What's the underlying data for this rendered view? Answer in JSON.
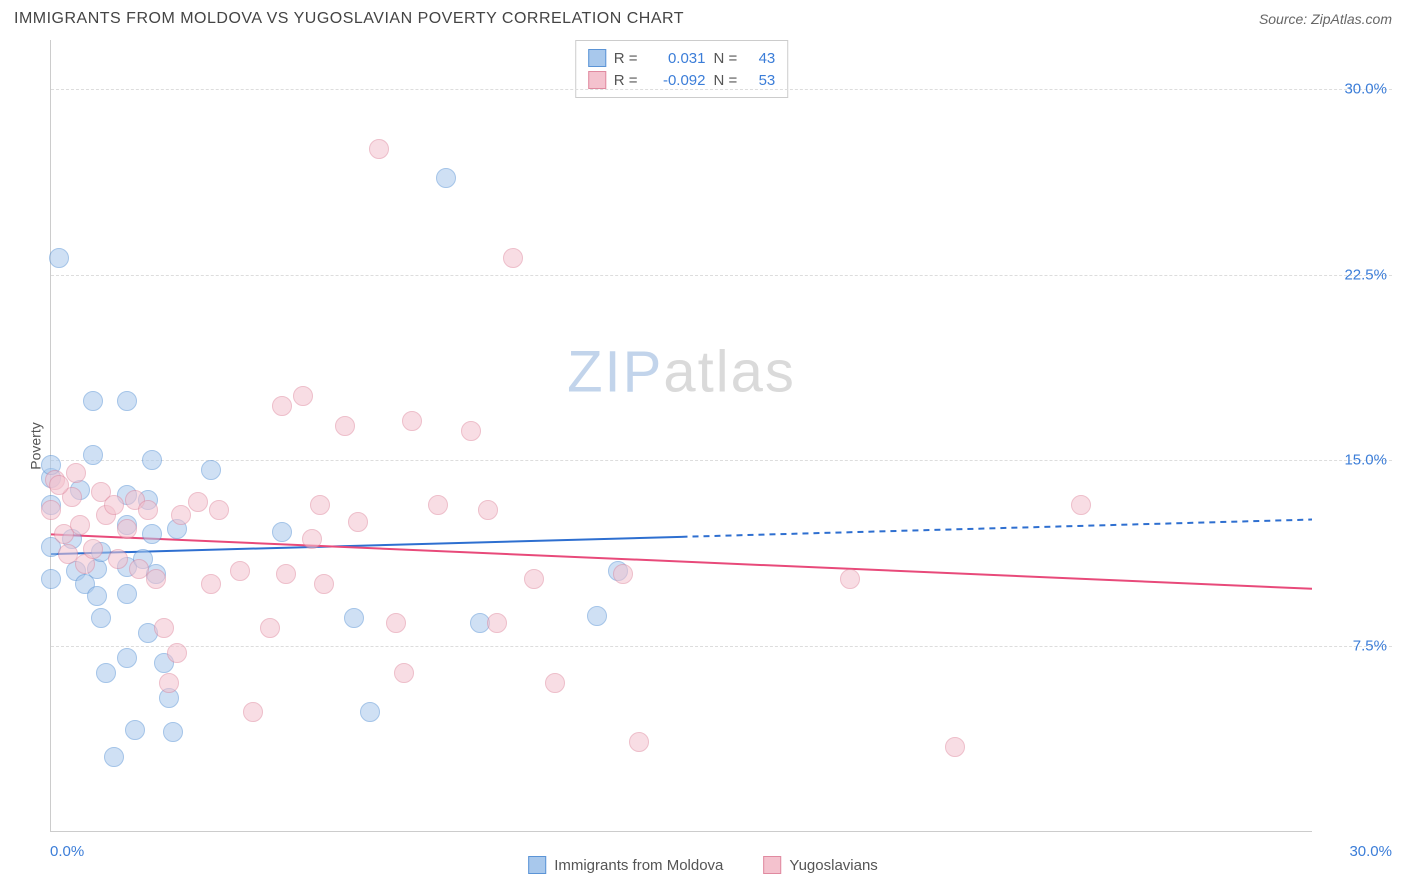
{
  "title": "IMMIGRANTS FROM MOLDOVA VS YUGOSLAVIAN POVERTY CORRELATION CHART",
  "source": "Source: ZipAtlas.com",
  "ylabel": "Poverty",
  "watermark_zip": "ZIP",
  "watermark_atlas": "atlas",
  "chart": {
    "type": "scatter",
    "xlim": [
      0,
      30
    ],
    "ylim": [
      0,
      32
    ],
    "x_ticks": [
      {
        "pos": 0,
        "label": "0.0%"
      },
      {
        "pos": 30,
        "label": "30.0%"
      }
    ],
    "y_ticks": [
      {
        "pos": 7.5,
        "label": "7.5%"
      },
      {
        "pos": 15.0,
        "label": "15.0%"
      },
      {
        "pos": 22.5,
        "label": "22.5%"
      },
      {
        "pos": 30.0,
        "label": "30.0%"
      }
    ],
    "background_color": "#ffffff",
    "grid_color": "#dddddd",
    "axis_color": "#cccccc",
    "tick_label_color": "#3b7dd8",
    "tick_fontsize": 15,
    "title_fontsize": 16,
    "marker_radius": 10,
    "marker_opacity": 0.55,
    "series": [
      {
        "name": "Immigrants from Moldova",
        "fill_color": "#a8c8ec",
        "stroke_color": "#5b94d6",
        "R": "0.031",
        "N": "43",
        "trend": {
          "y_at_x0": 11.2,
          "y_at_x30": 12.6,
          "solid_until_x": 15,
          "color": "#2e6fd0",
          "width": 2
        },
        "points": [
          [
            0.0,
            14.3
          ],
          [
            0.0,
            14.8
          ],
          [
            0.0,
            13.2
          ],
          [
            0.0,
            11.5
          ],
          [
            0.0,
            10.2
          ],
          [
            0.2,
            23.2
          ],
          [
            0.5,
            11.8
          ],
          [
            0.6,
            10.5
          ],
          [
            0.7,
            13.8
          ],
          [
            0.8,
            10.0
          ],
          [
            1.0,
            17.4
          ],
          [
            1.0,
            15.2
          ],
          [
            1.1,
            10.6
          ],
          [
            1.1,
            9.5
          ],
          [
            1.2,
            11.3
          ],
          [
            1.2,
            8.6
          ],
          [
            1.3,
            6.4
          ],
          [
            1.5,
            3.0
          ],
          [
            1.8,
            17.4
          ],
          [
            1.8,
            13.6
          ],
          [
            1.8,
            12.4
          ],
          [
            1.8,
            10.7
          ],
          [
            1.8,
            9.6
          ],
          [
            1.8,
            7.0
          ],
          [
            2.0,
            4.1
          ],
          [
            2.2,
            11.0
          ],
          [
            2.3,
            13.4
          ],
          [
            2.3,
            8.0
          ],
          [
            2.4,
            15.0
          ],
          [
            2.4,
            12.0
          ],
          [
            2.5,
            10.4
          ],
          [
            2.7,
            6.8
          ],
          [
            2.8,
            5.4
          ],
          [
            2.9,
            4.0
          ],
          [
            3.0,
            12.2
          ],
          [
            3.8,
            14.6
          ],
          [
            5.5,
            12.1
          ],
          [
            7.2,
            8.6
          ],
          [
            7.6,
            4.8
          ],
          [
            9.4,
            26.4
          ],
          [
            10.2,
            8.4
          ],
          [
            13.0,
            8.7
          ],
          [
            13.5,
            10.5
          ]
        ]
      },
      {
        "name": "Yugoslavians",
        "fill_color": "#f4c2ce",
        "stroke_color": "#e08aa0",
        "R": "-0.092",
        "N": "53",
        "trend": {
          "y_at_x0": 12.0,
          "y_at_x30": 9.8,
          "solid_until_x": 30,
          "color": "#e84a7a",
          "width": 2
        },
        "points": [
          [
            0.0,
            13.0
          ],
          [
            0.1,
            14.2
          ],
          [
            0.3,
            12.0
          ],
          [
            0.5,
            13.5
          ],
          [
            0.6,
            14.5
          ],
          [
            0.7,
            12.4
          ],
          [
            0.8,
            10.8
          ],
          [
            1.0,
            11.4
          ],
          [
            1.2,
            13.7
          ],
          [
            1.3,
            12.8
          ],
          [
            1.5,
            13.2
          ],
          [
            1.6,
            11.0
          ],
          [
            1.8,
            12.2
          ],
          [
            2.0,
            13.4
          ],
          [
            2.1,
            10.6
          ],
          [
            2.3,
            13.0
          ],
          [
            2.5,
            10.2
          ],
          [
            2.7,
            8.2
          ],
          [
            2.8,
            6.0
          ],
          [
            3.0,
            7.2
          ],
          [
            3.1,
            12.8
          ],
          [
            3.5,
            13.3
          ],
          [
            3.8,
            10.0
          ],
          [
            4.0,
            13.0
          ],
          [
            4.5,
            10.5
          ],
          [
            4.8,
            4.8
          ],
          [
            5.2,
            8.2
          ],
          [
            5.5,
            17.2
          ],
          [
            5.6,
            10.4
          ],
          [
            6.0,
            17.6
          ],
          [
            6.2,
            11.8
          ],
          [
            6.4,
            13.2
          ],
          [
            6.5,
            10.0
          ],
          [
            7.0,
            16.4
          ],
          [
            7.3,
            12.5
          ],
          [
            7.8,
            27.6
          ],
          [
            8.2,
            8.4
          ],
          [
            8.4,
            6.4
          ],
          [
            8.6,
            16.6
          ],
          [
            9.2,
            13.2
          ],
          [
            10.0,
            16.2
          ],
          [
            10.4,
            13.0
          ],
          [
            10.6,
            8.4
          ],
          [
            11.0,
            23.2
          ],
          [
            11.5,
            10.2
          ],
          [
            12.0,
            6.0
          ],
          [
            13.6,
            10.4
          ],
          [
            14.0,
            3.6
          ],
          [
            19.0,
            10.2
          ],
          [
            21.5,
            3.4
          ],
          [
            24.5,
            13.2
          ],
          [
            0.2,
            14.0
          ],
          [
            0.4,
            11.2
          ]
        ]
      }
    ]
  },
  "stats_legend": {
    "r_label": "R =",
    "n_label": "N ="
  },
  "bottom_legend": {
    "items": [
      {
        "label": "Immigrants from Moldova",
        "fill": "#a8c8ec",
        "stroke": "#5b94d6"
      },
      {
        "label": "Yugoslavians",
        "fill": "#f4c2ce",
        "stroke": "#e08aa0"
      }
    ]
  }
}
